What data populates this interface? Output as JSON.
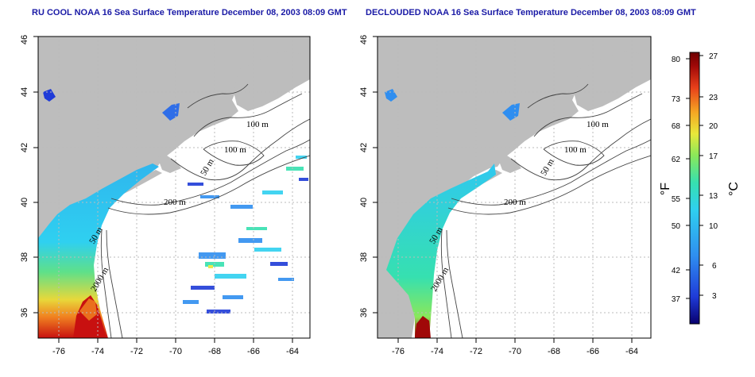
{
  "panels": [
    {
      "title": "RU COOL NOAA 16 Sea Surface Temperature December 08, 2003 08:09 GMT",
      "x_ticks": [
        "-76",
        "-74",
        "-72",
        "-70",
        "-68",
        "-66",
        "-64"
      ],
      "y_ticks": [
        "46",
        "44",
        "42",
        "40",
        "38",
        "36"
      ],
      "isobath_labels": [
        "100 m",
        "100 m",
        "50 m",
        "200 m",
        "50 m",
        "2000 m"
      ]
    },
    {
      "title": "DECLOUDED NOAA 16 Sea Surface Temperature December 08, 2003 08:09 GMT",
      "x_ticks": [
        "-76",
        "-74",
        "-72",
        "-70",
        "-68",
        "-66",
        "-64"
      ],
      "y_ticks": [
        "46",
        "44",
        "42",
        "40",
        "38",
        "36"
      ],
      "isobath_labels": [
        "100 m",
        "100 m",
        "50 m",
        "200 m",
        "50 m",
        "2000 m"
      ]
    }
  ],
  "colorbar": {
    "fahrenheit_ticks": [
      "80",
      "73",
      "68",
      "62",
      "55",
      "50",
      "42",
      "37"
    ],
    "celsius_ticks": [
      "27",
      "23",
      "20",
      "17",
      "13",
      "10",
      "6",
      "3"
    ],
    "fahrenheit_unit": "°F",
    "celsius_unit": "°C",
    "colors": [
      "#08006e",
      "#1f3bd8",
      "#2f8ef0",
      "#2fd0f0",
      "#36e0b0",
      "#8ae85a",
      "#e8e83a",
      "#f5a623",
      "#e8401a",
      "#a00808",
      "#6e0000"
    ]
  },
  "colors": {
    "land": "#bdbdbd",
    "title": "#1a1aa6",
    "grid": "#bbbbbb"
  }
}
